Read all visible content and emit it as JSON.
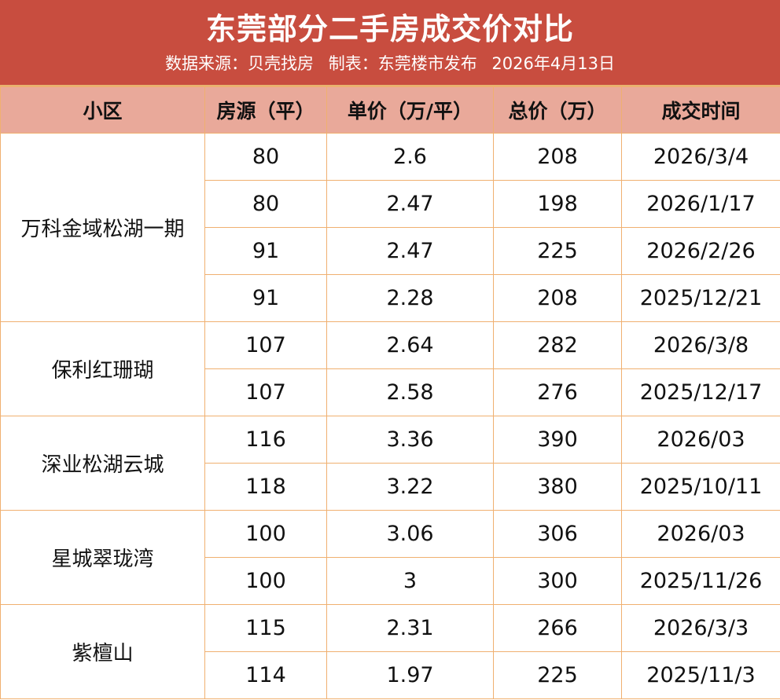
{
  "header": {
    "title": "东莞部分二手房成交价对比",
    "source": "数据来源：贝壳找房",
    "maker": "制表：东莞楼市发布",
    "date": "2026年4月13日"
  },
  "table": {
    "columns": [
      "小区",
      "房源（平）",
      "单价（万/平）",
      "总价（万）",
      "成交时间"
    ],
    "groups": [
      {
        "community": "万科金域松湖一期",
        "rows": [
          {
            "area": "80",
            "unit_price": "2.6",
            "total_price": "208",
            "date": "2026/3/4"
          },
          {
            "area": "80",
            "unit_price": "2.47",
            "total_price": "198",
            "date": "2026/1/17"
          },
          {
            "area": "91",
            "unit_price": "2.47",
            "total_price": "225",
            "date": "2026/2/26"
          },
          {
            "area": "91",
            "unit_price": "2.28",
            "total_price": "208",
            "date": "2025/12/21"
          }
        ]
      },
      {
        "community": "保利红珊瑚",
        "rows": [
          {
            "area": "107",
            "unit_price": "2.64",
            "total_price": "282",
            "date": "2026/3/8"
          },
          {
            "area": "107",
            "unit_price": "2.58",
            "total_price": "276",
            "date": "2025/12/17"
          }
        ]
      },
      {
        "community": "深业松湖云城",
        "rows": [
          {
            "area": "116",
            "unit_price": "3.36",
            "total_price": "390",
            "date": "2026/03"
          },
          {
            "area": "118",
            "unit_price": "3.22",
            "total_price": "380",
            "date": "2025/10/11"
          }
        ]
      },
      {
        "community": "星城翠珑湾",
        "rows": [
          {
            "area": "100",
            "unit_price": "3.06",
            "total_price": "306",
            "date": "2026/03"
          },
          {
            "area": "100",
            "unit_price": "3",
            "total_price": "300",
            "date": "2025/11/26"
          }
        ]
      },
      {
        "community": "紫檀山",
        "rows": [
          {
            "area": "115",
            "unit_price": "2.31",
            "total_price": "266",
            "date": "2026/3/3"
          },
          {
            "area": "114",
            "unit_price": "1.97",
            "total_price": "225",
            "date": "2025/11/3"
          }
        ]
      }
    ]
  }
}
